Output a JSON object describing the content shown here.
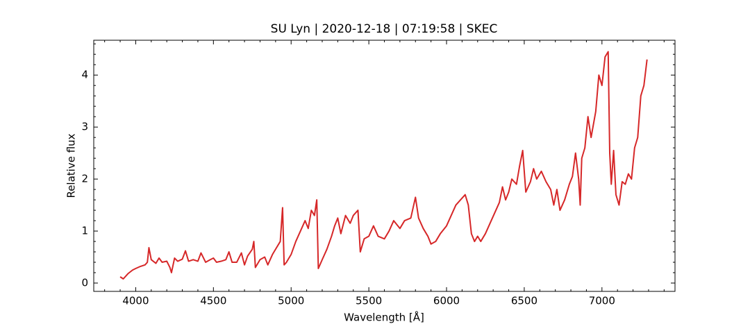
{
  "chart_data": {
    "type": "line",
    "title": "SU Lyn | 2020-12-18 | 07:19:58 | SKEC",
    "x_label": "Wavelength [Å]",
    "y_label": "Relative flux",
    "x": [
      3900,
      3920,
      3950,
      3980,
      4000,
      4030,
      4060,
      4075,
      4085,
      4100,
      4130,
      4150,
      4170,
      4200,
      4220,
      4230,
      4250,
      4270,
      4300,
      4320,
      4340,
      4370,
      4400,
      4420,
      4450,
      4480,
      4500,
      4520,
      4550,
      4580,
      4600,
      4620,
      4650,
      4680,
      4700,
      4720,
      4750,
      4760,
      4770,
      4800,
      4830,
      4850,
      4880,
      4900,
      4930,
      4945,
      4955,
      4970,
      5000,
      5030,
      5060,
      5090,
      5110,
      5130,
      5150,
      5165,
      5175,
      5200,
      5230,
      5260,
      5280,
      5300,
      5320,
      5350,
      5380,
      5400,
      5430,
      5445,
      5470,
      5500,
      5530,
      5560,
      5600,
      5630,
      5660,
      5700,
      5730,
      5770,
      5800,
      5820,
      5850,
      5880,
      5900,
      5930,
      5960,
      6000,
      6030,
      6060,
      6090,
      6120,
      6140,
      6160,
      6180,
      6200,
      6220,
      6250,
      6280,
      6310,
      6340,
      6360,
      6380,
      6400,
      6420,
      6450,
      6470,
      6490,
      6510,
      6540,
      6560,
      6580,
      6610,
      6640,
      6670,
      6690,
      6710,
      6730,
      6760,
      6790,
      6810,
      6830,
      6850,
      6860,
      6870,
      6890,
      6910,
      6930,
      6960,
      6980,
      7000,
      7020,
      7040,
      7050,
      7060,
      7075,
      7090,
      7110,
      7130,
      7150,
      7170,
      7190,
      7210,
      7230,
      7250,
      7270,
      7290
    ],
    "series": [
      {
        "color": "#d62728",
        "values": [
          0.12,
          0.08,
          0.18,
          0.25,
          0.28,
          0.32,
          0.35,
          0.4,
          0.68,
          0.45,
          0.38,
          0.48,
          0.4,
          0.42,
          0.3,
          0.2,
          0.48,
          0.42,
          0.46,
          0.62,
          0.42,
          0.45,
          0.42,
          0.58,
          0.4,
          0.45,
          0.48,
          0.4,
          0.42,
          0.45,
          0.6,
          0.4,
          0.4,
          0.58,
          0.35,
          0.52,
          0.65,
          0.8,
          0.3,
          0.45,
          0.5,
          0.35,
          0.55,
          0.65,
          0.8,
          1.45,
          0.35,
          0.4,
          0.55,
          0.8,
          1.0,
          1.2,
          1.05,
          1.4,
          1.3,
          1.6,
          0.28,
          0.45,
          0.65,
          0.9,
          1.1,
          1.25,
          0.95,
          1.3,
          1.15,
          1.3,
          1.4,
          0.6,
          0.85,
          0.9,
          1.1,
          0.9,
          0.85,
          1.0,
          1.2,
          1.05,
          1.2,
          1.25,
          1.65,
          1.25,
          1.05,
          0.9,
          0.75,
          0.8,
          0.95,
          1.1,
          1.3,
          1.5,
          1.6,
          1.7,
          1.5,
          0.95,
          0.8,
          0.9,
          0.8,
          0.95,
          1.15,
          1.35,
          1.55,
          1.85,
          1.6,
          1.75,
          2.0,
          1.9,
          2.25,
          2.55,
          1.75,
          1.95,
          2.2,
          2.0,
          2.15,
          1.95,
          1.8,
          1.5,
          1.8,
          1.4,
          1.6,
          1.9,
          2.05,
          2.5,
          2.0,
          1.5,
          2.4,
          2.6,
          3.2,
          2.8,
          3.3,
          4.0,
          3.8,
          4.35,
          4.45,
          2.5,
          1.9,
          2.55,
          1.7,
          1.5,
          1.95,
          1.9,
          2.1,
          2.0,
          2.6,
          2.8,
          3.6,
          3.8,
          4.3
        ]
      }
    ],
    "xlim": [
      3730,
      7470
    ],
    "ylim": [
      -0.16,
      4.67
    ],
    "xticks": [
      4000,
      4500,
      5000,
      5500,
      6000,
      6500,
      7000
    ],
    "yticks": [
      0,
      1,
      2,
      3,
      4
    ],
    "xticks_minor": [
      3800,
      3900,
      4100,
      4200,
      4300,
      4400,
      4600,
      4700,
      4800,
      4900,
      5100,
      5200,
      5300,
      5400,
      5600,
      5700,
      5800,
      5900,
      6100,
      6200,
      6300,
      6400,
      6600,
      6700,
      6800,
      6900,
      7100,
      7200,
      7300,
      7400
    ],
    "yticks_minor": [
      0.2,
      0.4,
      0.6,
      0.8,
      1.2,
      1.4,
      1.6,
      1.8,
      2.2,
      2.4,
      2.6,
      2.8,
      3.2,
      3.4,
      3.6,
      3.8,
      4.2,
      4.4,
      4.6
    ]
  }
}
